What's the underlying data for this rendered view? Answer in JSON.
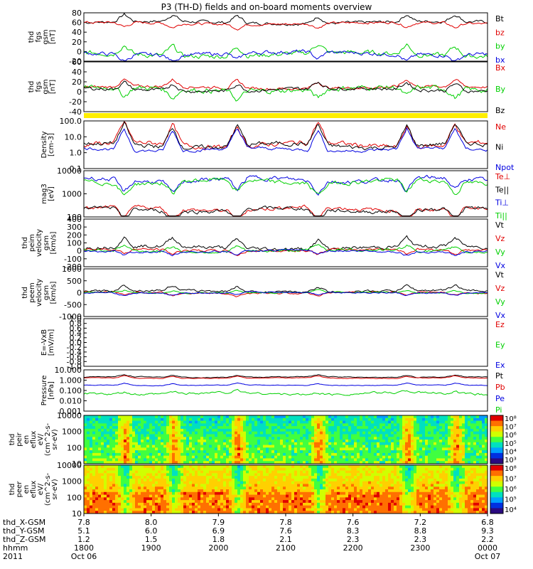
{
  "title": "P3 (TH-D) fields and on-board moments overview",
  "colors": {
    "black": "#000000",
    "red": "#e00000",
    "green": "#00d000",
    "blue": "#0000e0",
    "yellow": "#ffee00"
  },
  "chart_data": [
    {
      "id": "fgs",
      "type": "line",
      "ylabel": [
        "thd",
        "fgs",
        "gsm",
        "[nT]"
      ],
      "ylim": [
        -20,
        80
      ],
      "yticks": [
        "80",
        "60",
        "40",
        "20",
        "0",
        "-20"
      ],
      "series": [
        {
          "name": "Bt",
          "color": "#000000",
          "base": 60,
          "amp": 6
        },
        {
          "name": "bz",
          "color": "#e00000",
          "base": 58,
          "amp": 5
        },
        {
          "name": "by",
          "color": "#00d000",
          "base": -6,
          "amp": 10
        },
        {
          "name": "bx",
          "color": "#0000e0",
          "base": -4,
          "amp": 8
        }
      ]
    },
    {
      "id": "fgs_dsl",
      "type": "line",
      "ylabel": [
        "thd",
        "fgs",
        "gsm",
        "[nT]"
      ],
      "ylim": [
        -60,
        80
      ],
      "yticks": [
        "60",
        "40",
        "20",
        "0",
        "-20",
        "-40"
      ],
      "series": [
        {
          "name": "Bx",
          "color": "#e00000",
          "base": 8,
          "amp": 8
        },
        {
          "name": "By",
          "color": "#00d000",
          "base": 3,
          "amp": 14
        },
        {
          "name": "Bz",
          "color": "#000000",
          "base": 2,
          "amp": 10
        }
      ]
    },
    {
      "id": "density",
      "type": "line",
      "scale": "log",
      "ylabel": [
        "Density",
        "[cm-3]"
      ],
      "ylim": [
        0.1,
        100
      ],
      "yticks": [
        "100.0",
        "10.0",
        "1.0",
        "0.1"
      ],
      "series": [
        {
          "name": "Ne",
          "color": "#e00000",
          "base": 0.5,
          "amp": 0.5
        },
        {
          "name": "Ni",
          "color": "#000000",
          "base": 0.45,
          "amp": 0.45
        },
        {
          "name": "Npot",
          "color": "#0000e0",
          "base": 0.2,
          "amp": 0.3
        }
      ]
    },
    {
      "id": "temperature",
      "type": "line",
      "scale": "log",
      "ylabel": [
        "mag3",
        "[eV]"
      ],
      "ylim": [
        50,
        10000
      ],
      "yticks": [
        "10000",
        "1000",
        "100"
      ],
      "series": [
        {
          "name": "Te⊥",
          "color": "#e00000",
          "base": 2.1,
          "amp": 0.3
        },
        {
          "name": "Te||",
          "color": "#000000",
          "base": 2.05,
          "amp": 0.3
        },
        {
          "name": "Ti⊥",
          "color": "#0000e0",
          "base": 3.55,
          "amp": 0.35
        },
        {
          "name": "Ti||",
          "color": "#00d000",
          "base": 3.45,
          "amp": 0.35
        }
      ]
    },
    {
      "id": "vi",
      "type": "line",
      "ylabel": [
        "thd",
        "peim",
        "velocity",
        "gsm",
        "[km/s]"
      ],
      "ylim": [
        -200,
        400
      ],
      "yticks": [
        "400",
        "300",
        "200",
        "100",
        "0",
        "-100",
        "-200"
      ],
      "series": [
        {
          "name": "Vt",
          "color": "#000000",
          "base": 40,
          "amp": 45
        },
        {
          "name": "Vz",
          "color": "#e00000",
          "base": 10,
          "amp": 30
        },
        {
          "name": "Vy",
          "color": "#00d000",
          "base": 0,
          "amp": 35
        },
        {
          "name": "Vx",
          "color": "#0000e0",
          "base": -5,
          "amp": 25
        }
      ]
    },
    {
      "id": "ve",
      "type": "line",
      "ylabel": [
        "thd",
        "peem",
        "velocity",
        "gsm",
        "[km/s]"
      ],
      "ylim": [
        -1000,
        1000
      ],
      "yticks": [
        "1000",
        "500",
        "0",
        "-500",
        "-1000"
      ],
      "series": [
        {
          "name": "Vt",
          "color": "#000000",
          "base": 60,
          "amp": 90
        },
        {
          "name": "Vz",
          "color": "#e00000",
          "base": 0,
          "amp": 70
        },
        {
          "name": "Vy",
          "color": "#00d000",
          "base": 0,
          "amp": 50
        },
        {
          "name": "Vx",
          "color": "#0000e0",
          "base": 0,
          "amp": 55
        }
      ]
    },
    {
      "id": "efield",
      "type": "line",
      "ylabel": [
        "E=-VxB",
        "[mV/m]"
      ],
      "ylim": [
        -1.0,
        1.0
      ],
      "yticks": [
        "1.0",
        "0.8",
        "0.6",
        "0.4",
        "0.2",
        "0.0",
        "-0.2",
        "-0.4",
        "-0.6",
        "-0.8",
        "-1.0"
      ],
      "series": [
        {
          "name": "Ez",
          "color": "#e00000"
        },
        {
          "name": "Ey",
          "color": "#00d000"
        },
        {
          "name": "Ex",
          "color": "#0000e0"
        }
      ]
    },
    {
      "id": "pressure",
      "type": "line",
      "scale": "log",
      "ylabel": [
        "Pressure",
        "[nPa]"
      ],
      "ylim": [
        0.001,
        10
      ],
      "yticks": [
        "10.000",
        "1.000",
        "0.100",
        "0.010",
        "0.001"
      ],
      "series": [
        {
          "name": "Pt",
          "color": "#000000",
          "base": 0.3,
          "amp": 0.12
        },
        {
          "name": "Pb",
          "color": "#e00000",
          "base": 0.2,
          "amp": 0.1
        },
        {
          "name": "Pe",
          "color": "#0000e0",
          "base": -0.5,
          "amp": 0.1
        },
        {
          "name": "Pi",
          "color": "#00d000",
          "base": -1.3,
          "amp": 0.35
        }
      ]
    },
    {
      "id": "ion_spec",
      "type": "heatmap",
      "ylabel": [
        "thd",
        "peir",
        "en",
        "eflux",
        "eV/",
        "(cm^2-s-",
        "sr-eV)"
      ],
      "ylim": [
        5,
        20000
      ],
      "yticks": [
        "10000",
        "1000",
        "100",
        "10"
      ],
      "colorbar_ticks": [
        "10⁸",
        "10⁷",
        "10⁶",
        "10⁵",
        "10⁴",
        "10³"
      ]
    },
    {
      "id": "elec_spec",
      "type": "heatmap",
      "ylabel": [
        "thd",
        "peer",
        "en",
        "eflux",
        "eV/",
        "(cm^2-s-",
        "sr-eV)"
      ],
      "ylim": [
        8,
        20000
      ],
      "yticks": [
        "10000",
        "1000",
        "100",
        "10"
      ],
      "colorbar_ticks": [
        "10⁸",
        "10⁷",
        "10⁶",
        "10⁵",
        "10⁴"
      ]
    }
  ],
  "x_axis": {
    "rows": [
      {
        "label": "thd_X-GSM",
        "values": [
          "7.8",
          "8.0",
          "7.9",
          "7.8",
          "7.6",
          "7.2",
          "6.8"
        ]
      },
      {
        "label": "thd_Y-GSM",
        "values": [
          "5.1",
          "6.0",
          "6.9",
          "7.6",
          "8.3",
          "8.8",
          "9.3"
        ]
      },
      {
        "label": "thd_Z-GSM",
        "values": [
          "1.2",
          "1.5",
          "1.8",
          "2.1",
          "2.3",
          "2.3",
          "2.2"
        ]
      },
      {
        "label": "hhmm",
        "values": [
          "1800",
          "1900",
          "2000",
          "2100",
          "2200",
          "2300",
          "0000"
        ]
      }
    ],
    "year": "2011",
    "dates": [
      "Oct 06",
      "Oct 07"
    ]
  }
}
